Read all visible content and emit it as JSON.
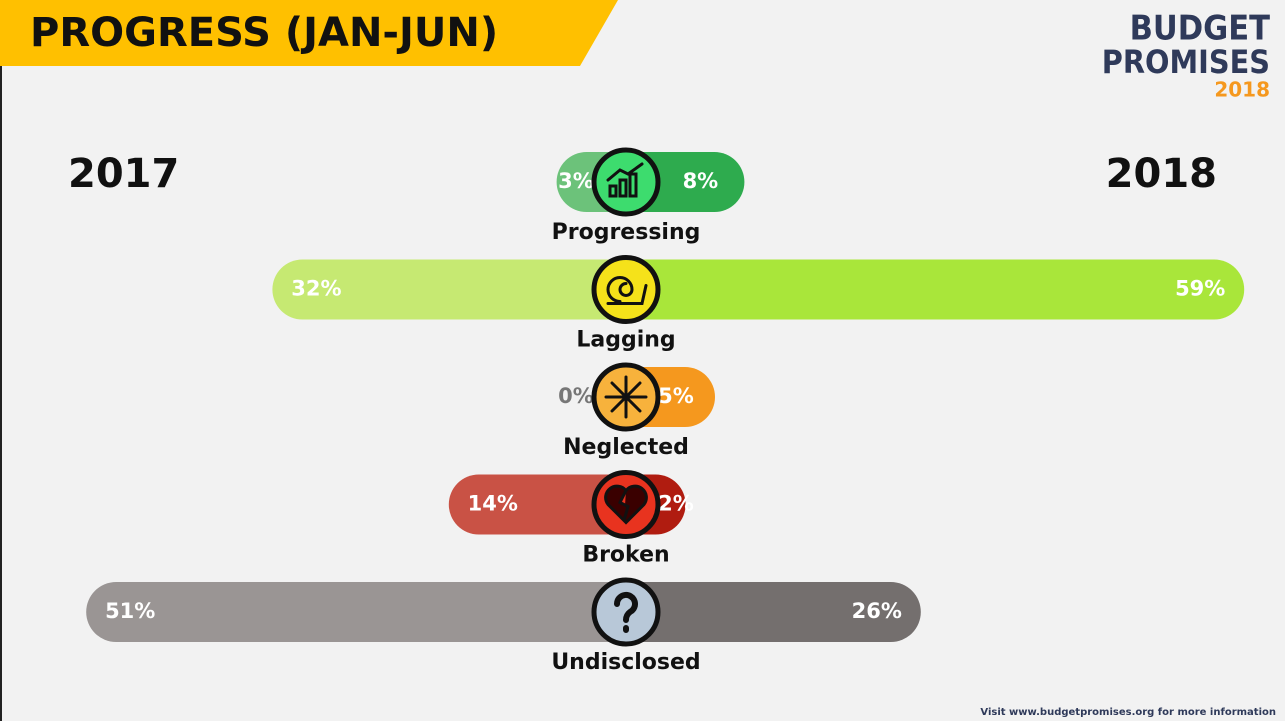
{
  "chart_data": {
    "type": "butterfly",
    "title": "PROGRESS (JAN-JUN)",
    "categories": [
      "Progressing",
      "Lagging",
      "Neglected",
      "Broken",
      "Undisclosed"
    ],
    "series": [
      {
        "name": "2017",
        "side": "left",
        "colors": [
          "#6cc27a",
          "#c6e972",
          "#f7b23c",
          "#c95245",
          "#9a9594"
        ],
        "values": [
          3,
          32,
          0,
          14,
          51
        ],
        "value_labels": [
          "3%",
          "32%",
          "0%",
          "14%",
          "51%"
        ]
      },
      {
        "name": "2018",
        "side": "right",
        "colors": [
          "#2eab4e",
          "#a9e63a",
          "#f5981e",
          "#b01c10",
          "#746f6e"
        ],
        "values": [
          8,
          59,
          5,
          2,
          26
        ],
        "value_labels": [
          "8%",
          "59%",
          "5%",
          "2%",
          "26%"
        ]
      }
    ],
    "icon_colors": [
      "#3ddc6e",
      "#f5e21a",
      "#f7b23c",
      "#e8331f",
      "#b8c8d8"
    ]
  },
  "logo": [
    "BUDGET",
    "PROMISES",
    "2018"
  ],
  "footer": "Visit www.budgetpromises.org for more information"
}
